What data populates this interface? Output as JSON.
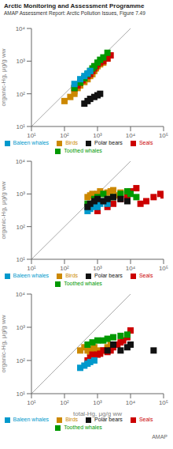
{
  "chart_data": [
    {
      "type": "scatter",
      "title": "Arctic Monitoring and Assessment Programme",
      "subtitle": "AMAP Assessment Report: Arctic Pollution Issues, Figure 7.49",
      "ylabel": "organic-Hg, μg/g ww",
      "log": true,
      "grid": false,
      "legend": "bottom",
      "xlim": [
        10,
        100000
      ],
      "ylim": [
        10,
        10000
      ],
      "xticks": [
        {
          "value": 10,
          "label": "10¹"
        },
        {
          "value": 100,
          "label": "10²"
        },
        {
          "value": 1000,
          "label": "10³"
        },
        {
          "value": 10000,
          "label": "10⁴"
        },
        {
          "value": 100000,
          "label": "10⁵"
        }
      ],
      "yticks": [
        {
          "value": 10,
          "label": "10¹"
        },
        {
          "value": 100,
          "label": "10²"
        },
        {
          "value": 1000,
          "label": "10³"
        },
        {
          "value": 10000,
          "label": "10⁴"
        }
      ],
      "reference_line": {
        "x": [
          10,
          10000
        ],
        "y": [
          10,
          10000
        ]
      },
      "series": [
        {
          "name": "Birds",
          "color": "#cc8800",
          "marker": "square",
          "x": [
            100,
            150,
            200,
            200,
            250,
            300,
            400,
            500,
            600,
            700,
            800,
            900,
            1000,
            1200,
            1500,
            2000
          ],
          "y": [
            60,
            80,
            100,
            120,
            150,
            180,
            230,
            280,
            350,
            400,
            500,
            600,
            700,
            800,
            900,
            1200
          ]
        },
        {
          "name": "Seals",
          "color": "#cc0000",
          "marker": "square",
          "x": [
            200,
            250,
            300,
            350,
            400,
            500,
            600,
            700,
            800,
            900,
            1000,
            1200,
            1500,
            2000,
            2500
          ],
          "y": [
            150,
            180,
            220,
            260,
            300,
            350,
            400,
            500,
            600,
            700,
            800,
            900,
            1000,
            1200,
            1500
          ]
        },
        {
          "name": "Toothed whales",
          "color": "#009900",
          "marker": "square",
          "x": [
            200,
            300,
            400,
            500,
            600,
            700,
            800,
            1000,
            1200,
            1500,
            2000
          ],
          "y": [
            150,
            220,
            300,
            400,
            500,
            600,
            700,
            900,
            1100,
            1300,
            1800
          ]
        },
        {
          "name": "Baleen whales",
          "color": "#0099cc",
          "marker": "square",
          "x": [
            200,
            300,
            400,
            500,
            600
          ],
          "y": [
            200,
            280,
            350,
            420,
            500
          ]
        },
        {
          "name": "Polar bears",
          "color": "#111111",
          "marker": "square",
          "x": [
            400,
            500,
            600,
            800,
            1000,
            1200
          ],
          "y": [
            50,
            60,
            70,
            80,
            90,
            100
          ]
        }
      ]
    },
    {
      "type": "scatter",
      "ylabel": "organic-Hg, μg/g ww",
      "log": true,
      "grid": false,
      "legend": "bottom",
      "xlim": [
        10,
        100000
      ],
      "ylim": [
        10,
        10000
      ],
      "xticks": [
        {
          "value": 10,
          "label": "10¹"
        },
        {
          "value": 100,
          "label": "10²"
        },
        {
          "value": 1000,
          "label": "10³"
        },
        {
          "value": 10000,
          "label": "10⁴"
        },
        {
          "value": 100000,
          "label": "10⁵"
        }
      ],
      "yticks": [
        {
          "value": 10,
          "label": "10¹"
        },
        {
          "value": 100,
          "label": "10²"
        },
        {
          "value": 1000,
          "label": "10³"
        },
        {
          "value": 10000,
          "label": "10⁴"
        }
      ],
      "reference_line": {
        "x": [
          10,
          10000
        ],
        "y": [
          10,
          10000
        ]
      },
      "series": [
        {
          "name": "Birds",
          "color": "#cc8800",
          "marker": "square",
          "x": [
            500,
            600,
            700,
            800,
            900,
            1000,
            1200,
            1500,
            2000,
            2500,
            3000,
            4000,
            5000
          ],
          "y": [
            800,
            900,
            1000,
            800,
            900,
            1000,
            1200,
            1000,
            1100,
            1200,
            1300,
            900,
            1100
          ]
        },
        {
          "name": "Seals",
          "color": "#cc0000",
          "marker": "square",
          "x": [
            1000,
            2000,
            3000,
            5000,
            8000,
            10000,
            15000,
            20000,
            30000,
            50000,
            80000,
            100000
          ],
          "y": [
            300,
            400,
            500,
            700,
            900,
            1200,
            1500,
            500,
            600,
            800,
            1000,
            900
          ]
        },
        {
          "name": "Toothed whales",
          "color": "#009900",
          "marker": "square",
          "x": [
            500,
            800,
            1000,
            1500,
            2000,
            3000,
            5000,
            8000,
            10000,
            15000
          ],
          "y": [
            500,
            700,
            800,
            1000,
            700,
            800,
            1000,
            1200,
            1000,
            800
          ]
        },
        {
          "name": "Baleen whales",
          "color": "#0099cc",
          "marker": "square",
          "x": [
            500,
            600,
            700,
            800,
            1000,
            1200,
            1500,
            2000
          ],
          "y": [
            300,
            350,
            400,
            450,
            400,
            500,
            600,
            500
          ]
        },
        {
          "name": "Polar bears",
          "color": "#111111",
          "marker": "square",
          "x": [
            500,
            600,
            800,
            1000,
            1500,
            2000,
            3000,
            5000,
            8000
          ],
          "y": [
            400,
            500,
            600,
            700,
            600,
            700,
            800,
            700,
            600
          ]
        }
      ]
    },
    {
      "type": "scatter",
      "xlabel": "total-Hg, μg/g ww",
      "ylabel": "organic-Hg, μg/g ww",
      "log": true,
      "grid": false,
      "legend": "bottom",
      "xlim": [
        10,
        100000
      ],
      "ylim": [
        10,
        10000
      ],
      "xticks": [
        {
          "value": 10,
          "label": "10¹"
        },
        {
          "value": 100,
          "label": "10²"
        },
        {
          "value": 1000,
          "label": "10³"
        },
        {
          "value": 10000,
          "label": "10⁴"
        },
        {
          "value": 100000,
          "label": "10⁵"
        }
      ],
      "yticks": [
        {
          "value": 10,
          "label": "10¹"
        },
        {
          "value": 100,
          "label": "10²"
        },
        {
          "value": 1000,
          "label": "10³"
        },
        {
          "value": 10000,
          "label": "10⁴"
        }
      ],
      "reference_line": {
        "x": [
          10,
          10000
        ],
        "y": [
          10,
          10000
        ]
      },
      "annotations": [
        {
          "text": "AMAP"
        }
      ],
      "series": [
        {
          "name": "Birds",
          "color": "#cc8800",
          "marker": "square",
          "x": [
            300,
            400,
            500,
            600,
            700,
            800,
            1000,
            1200,
            1500,
            2000,
            2500
          ],
          "y": [
            200,
            250,
            200,
            180,
            220,
            250,
            200,
            180,
            200,
            250,
            300
          ]
        },
        {
          "name": "Seals",
          "color": "#cc0000",
          "marker": "square",
          "x": [
            500,
            600,
            700,
            800,
            1000,
            1200,
            1500,
            2000,
            2500,
            3000,
            4000,
            5000,
            6000,
            8000,
            10000
          ],
          "y": [
            100,
            120,
            150,
            130,
            150,
            160,
            200,
            180,
            200,
            250,
            300,
            350,
            400,
            500,
            800
          ]
        },
        {
          "name": "Toothed whales",
          "color": "#009900",
          "marker": "square",
          "x": [
            500,
            700,
            1000,
            1500,
            2000,
            3000,
            5000,
            8000
          ],
          "y": [
            300,
            350,
            400,
            400,
            450,
            500,
            550,
            600
          ]
        },
        {
          "name": "Baleen whales",
          "color": "#0099cc",
          "marker": "square",
          "x": [
            300,
            400,
            500,
            600,
            800
          ],
          "y": [
            60,
            70,
            80,
            90,
            100
          ]
        },
        {
          "name": "Polar bears",
          "color": "#111111",
          "marker": "square",
          "x": [
            2000,
            3000,
            5000,
            8000,
            10000,
            50000
          ],
          "y": [
            200,
            300,
            200,
            250,
            300,
            200
          ]
        }
      ]
    }
  ]
}
